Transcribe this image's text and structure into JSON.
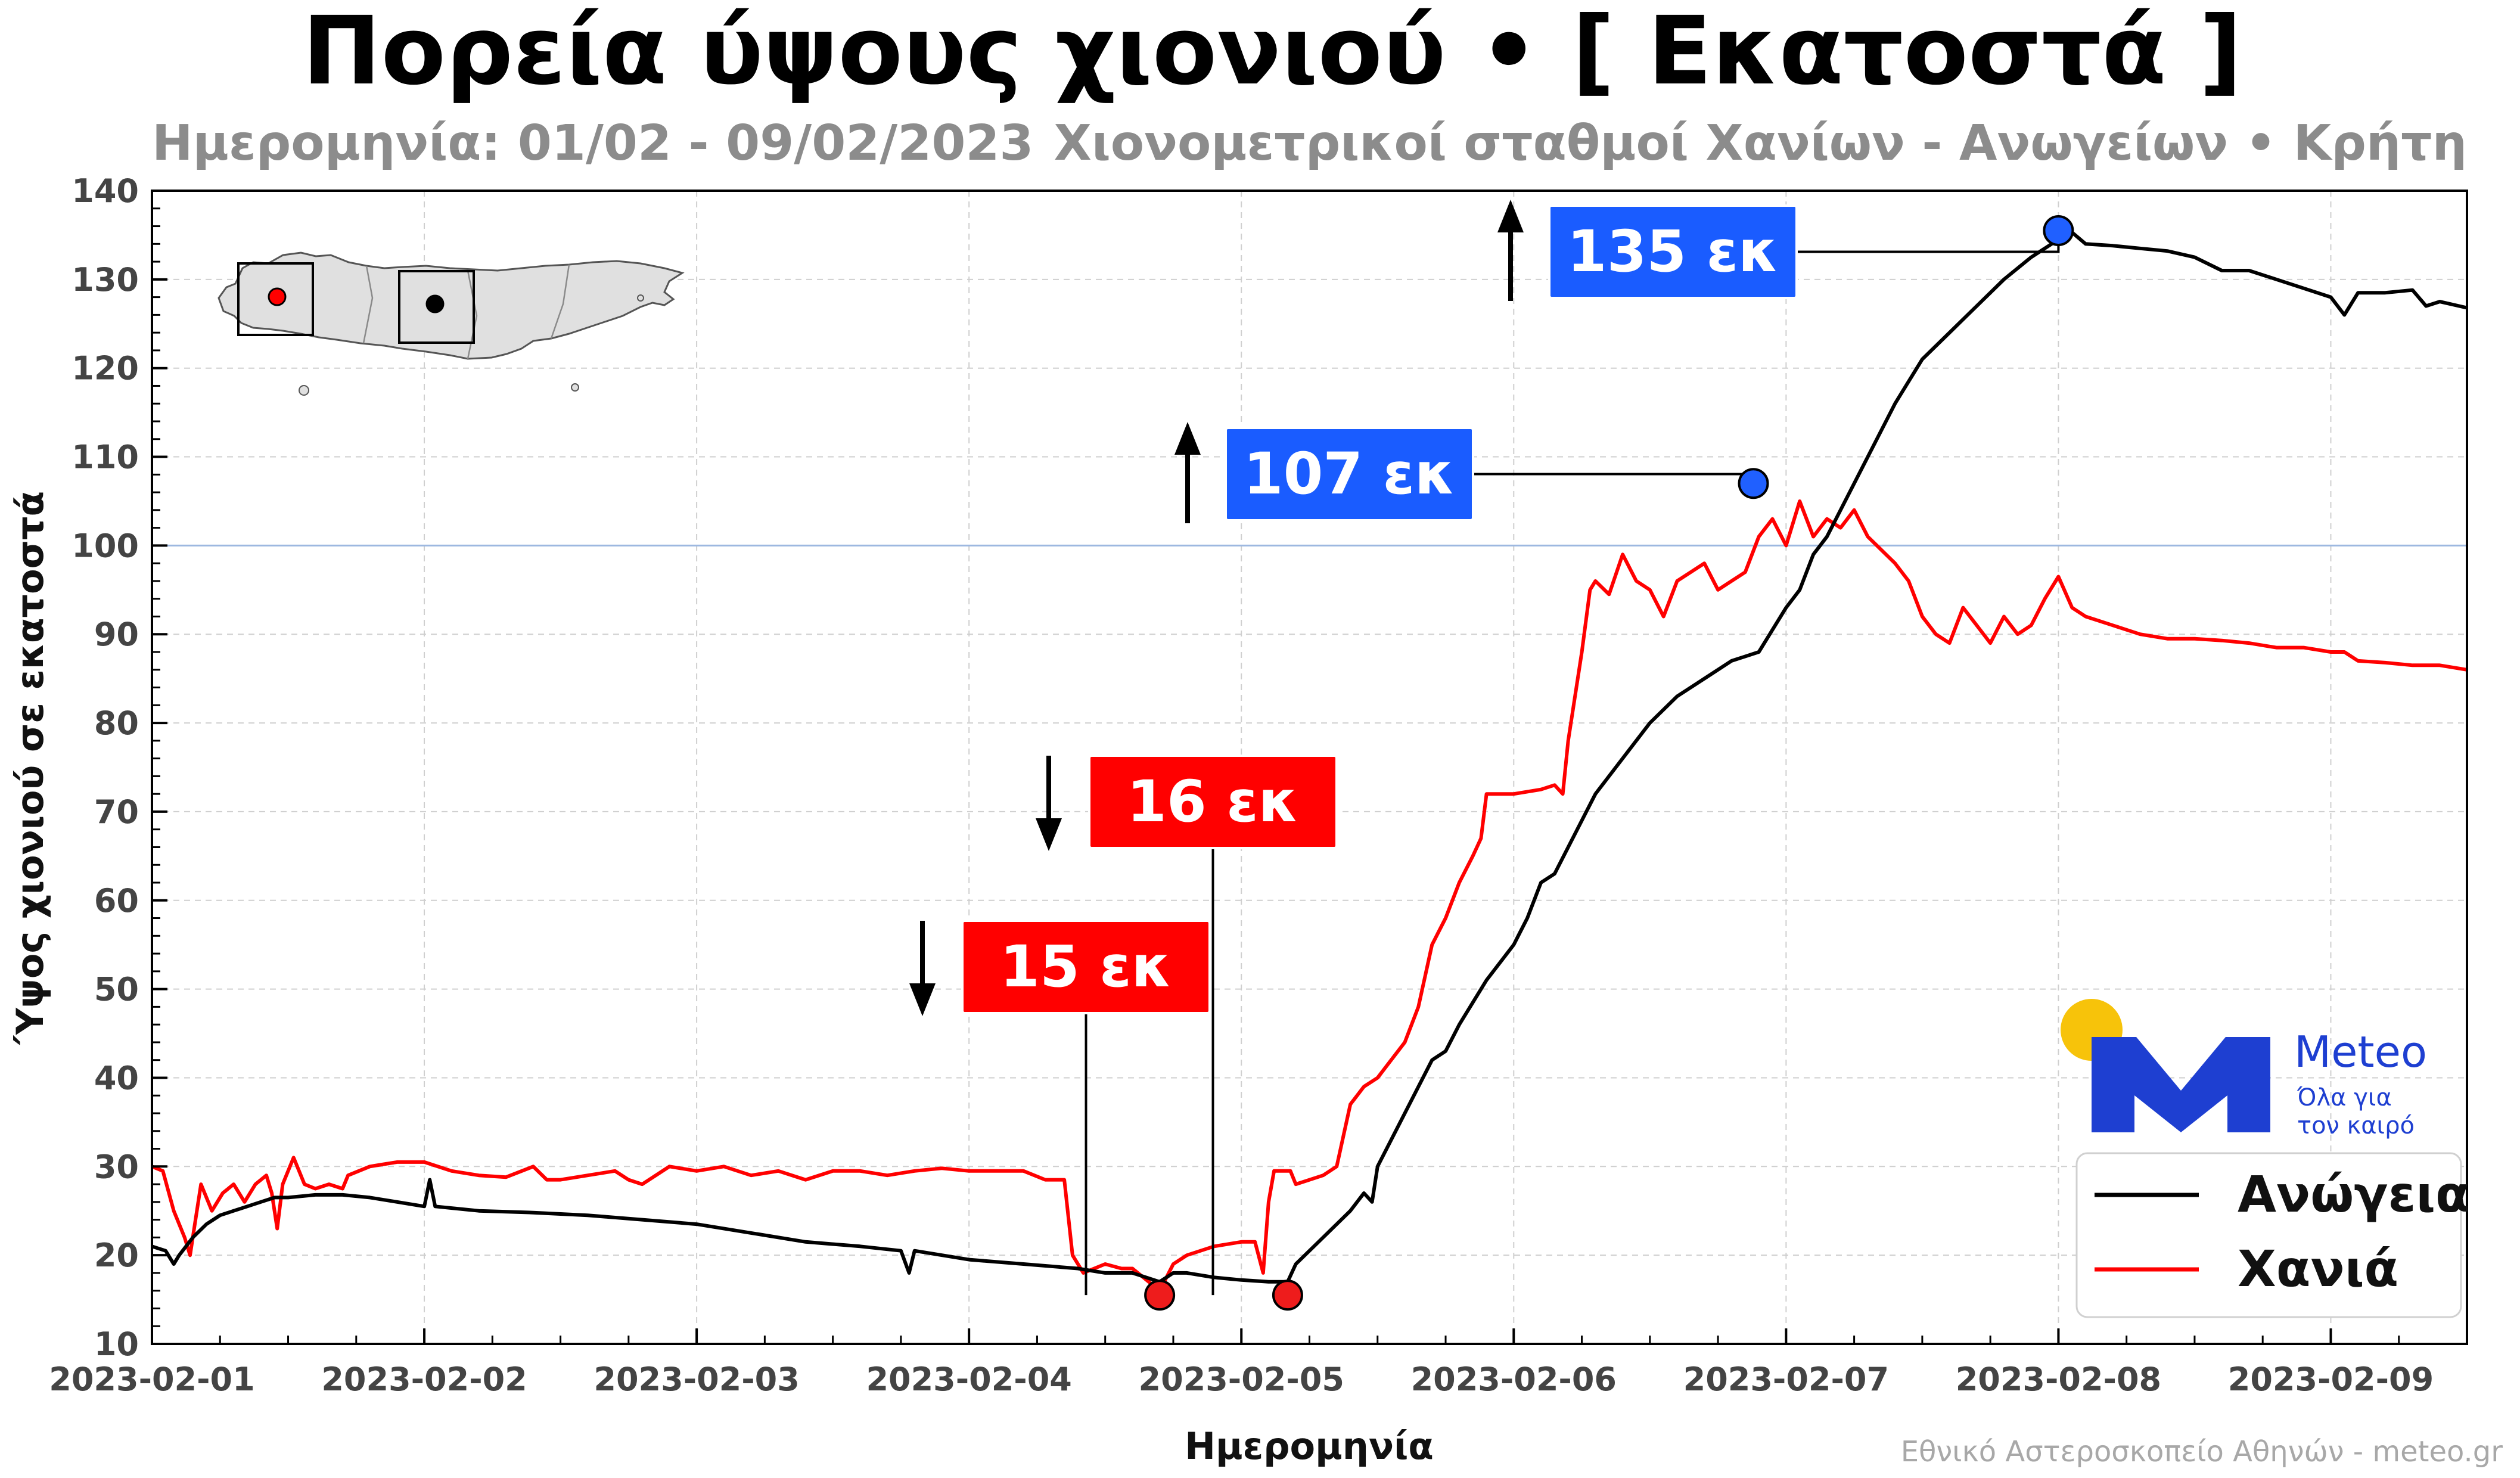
{
  "chart_data": {
    "type": "line",
    "title": "Πορεία ύψους χιονιού • [ Εκατοστά ]",
    "subtitle_left": "Ημερομηνία: 01/02 - 09/02/2023",
    "subtitle_right": "Χιονομετρικοί σταθμοί Χανίων - Ανωγείων • Κρήτη",
    "xlabel": "Ημερομηνία",
    "ylabel": "Ύψος χιονιού σε εκατοστά",
    "credit": "Εθνικό Αστεροσκοπείο Αθηνών - meteo.gr",
    "xlim": [
      0,
      8.5
    ],
    "ylim": [
      10,
      140
    ],
    "grid": true,
    "legend_position": "bottom-right",
    "x_ticks": [
      {
        "x": 0,
        "label": "2023-02-01"
      },
      {
        "x": 1,
        "label": "2023-02-02"
      },
      {
        "x": 2,
        "label": "2023-02-03"
      },
      {
        "x": 3,
        "label": "2023-02-04"
      },
      {
        "x": 4,
        "label": "2023-02-05"
      },
      {
        "x": 5,
        "label": "2023-02-06"
      },
      {
        "x": 6,
        "label": "2023-02-07"
      },
      {
        "x": 7,
        "label": "2023-02-08"
      },
      {
        "x": 8,
        "label": "2023-02-09"
      }
    ],
    "y_ticks": [
      {
        "y": 10,
        "label": "10"
      },
      {
        "y": 20,
        "label": "20"
      },
      {
        "y": 30,
        "label": "30"
      },
      {
        "y": 40,
        "label": "40"
      },
      {
        "y": 50,
        "label": "50"
      },
      {
        "y": 60,
        "label": "60"
      },
      {
        "y": 70,
        "label": "70"
      },
      {
        "y": 80,
        "label": "80"
      },
      {
        "y": 90,
        "label": "90"
      },
      {
        "y": 100,
        "label": "100",
        "highlight": true
      },
      {
        "y": 110,
        "label": "110"
      },
      {
        "y": 120,
        "label": "120"
      },
      {
        "y": 130,
        "label": "130"
      },
      {
        "y": 140,
        "label": "140"
      }
    ],
    "reference_line": {
      "y": 100,
      "color": "#9db8e0"
    },
    "series": [
      {
        "name": "Ανώγεια",
        "color": "#000000",
        "points": [
          [
            0,
            21
          ],
          [
            0.05,
            20.5
          ],
          [
            0.08,
            19
          ],
          [
            0.1,
            20
          ],
          [
            0.15,
            22
          ],
          [
            0.2,
            23.5
          ],
          [
            0.25,
            24.5
          ],
          [
            0.3,
            25
          ],
          [
            0.35,
            25.5
          ],
          [
            0.4,
            26
          ],
          [
            0.45,
            26.5
          ],
          [
            0.5,
            26.5
          ],
          [
            0.6,
            26.8
          ],
          [
            0.7,
            26.8
          ],
          [
            0.8,
            26.5
          ],
          [
            0.9,
            26
          ],
          [
            1.0,
            25.5
          ],
          [
            1.02,
            28.5
          ],
          [
            1.04,
            25.5
          ],
          [
            1.2,
            25
          ],
          [
            1.4,
            24.8
          ],
          [
            1.6,
            24.5
          ],
          [
            1.8,
            24
          ],
          [
            2.0,
            23.5
          ],
          [
            2.2,
            22.5
          ],
          [
            2.4,
            21.5
          ],
          [
            2.6,
            21
          ],
          [
            2.75,
            20.5
          ],
          [
            2.78,
            18
          ],
          [
            2.8,
            20.5
          ],
          [
            3.0,
            19.5
          ],
          [
            3.2,
            19
          ],
          [
            3.4,
            18.5
          ],
          [
            3.5,
            18
          ],
          [
            3.6,
            18
          ],
          [
            3.7,
            17
          ],
          [
            3.75,
            18
          ],
          [
            3.8,
            18
          ],
          [
            3.9,
            17.5
          ],
          [
            4.0,
            17.2
          ],
          [
            4.1,
            17
          ],
          [
            4.17,
            17
          ],
          [
            4.2,
            19
          ],
          [
            4.3,
            22
          ],
          [
            4.4,
            25
          ],
          [
            4.45,
            27
          ],
          [
            4.48,
            26
          ],
          [
            4.5,
            30
          ],
          [
            4.6,
            36
          ],
          [
            4.7,
            42
          ],
          [
            4.75,
            43
          ],
          [
            4.8,
            46
          ],
          [
            4.9,
            51
          ],
          [
            5.0,
            55
          ],
          [
            5.05,
            58
          ],
          [
            5.1,
            62
          ],
          [
            5.15,
            63
          ],
          [
            5.2,
            66
          ],
          [
            5.3,
            72
          ],
          [
            5.4,
            76
          ],
          [
            5.5,
            80
          ],
          [
            5.6,
            83
          ],
          [
            5.7,
            85
          ],
          [
            5.8,
            87
          ],
          [
            5.9,
            88
          ],
          [
            6.0,
            93
          ],
          [
            6.05,
            95
          ],
          [
            6.1,
            99
          ],
          [
            6.15,
            101
          ],
          [
            6.2,
            104
          ],
          [
            6.3,
            110
          ],
          [
            6.4,
            116
          ],
          [
            6.5,
            121
          ],
          [
            6.6,
            124
          ],
          [
            6.7,
            127
          ],
          [
            6.8,
            130
          ],
          [
            6.9,
            132.5
          ],
          [
            7.0,
            134.5
          ],
          [
            7.05,
            135.3
          ],
          [
            7.1,
            134
          ],
          [
            7.2,
            133.8
          ],
          [
            7.3,
            133.5
          ],
          [
            7.4,
            133.2
          ],
          [
            7.5,
            132.5
          ],
          [
            7.6,
            131
          ],
          [
            7.7,
            131
          ],
          [
            7.8,
            130
          ],
          [
            7.9,
            129
          ],
          [
            8.0,
            128
          ],
          [
            8.05,
            126
          ],
          [
            8.1,
            128.5
          ],
          [
            8.2,
            128.5
          ],
          [
            8.3,
            128.8
          ],
          [
            8.35,
            127
          ],
          [
            8.4,
            127.5
          ],
          [
            8.5,
            126.8
          ]
        ]
      },
      {
        "name": "Χανιά",
        "color": "#ff0000",
        "points": [
          [
            0,
            30
          ],
          [
            0.04,
            29.5
          ],
          [
            0.08,
            25
          ],
          [
            0.12,
            22
          ],
          [
            0.14,
            20
          ],
          [
            0.16,
            24
          ],
          [
            0.18,
            28
          ],
          [
            0.22,
            25
          ],
          [
            0.26,
            27
          ],
          [
            0.3,
            28
          ],
          [
            0.34,
            26
          ],
          [
            0.38,
            28
          ],
          [
            0.42,
            29
          ],
          [
            0.44,
            27
          ],
          [
            0.46,
            23
          ],
          [
            0.48,
            28
          ],
          [
            0.52,
            31
          ],
          [
            0.56,
            28
          ],
          [
            0.6,
            27.5
          ],
          [
            0.65,
            28
          ],
          [
            0.7,
            27.5
          ],
          [
            0.72,
            29
          ],
          [
            0.8,
            30
          ],
          [
            0.9,
            30.5
          ],
          [
            1.0,
            30.5
          ],
          [
            1.1,
            29.5
          ],
          [
            1.2,
            29
          ],
          [
            1.3,
            28.8
          ],
          [
            1.4,
            30
          ],
          [
            1.45,
            28.5
          ],
          [
            1.5,
            28.5
          ],
          [
            1.6,
            29
          ],
          [
            1.7,
            29.5
          ],
          [
            1.75,
            28.5
          ],
          [
            1.8,
            28
          ],
          [
            1.9,
            30
          ],
          [
            2.0,
            29.5
          ],
          [
            2.1,
            30
          ],
          [
            2.2,
            29
          ],
          [
            2.3,
            29.5
          ],
          [
            2.4,
            28.5
          ],
          [
            2.5,
            29.5
          ],
          [
            2.6,
            29.5
          ],
          [
            2.7,
            29
          ],
          [
            2.8,
            29.5
          ],
          [
            2.9,
            29.8
          ],
          [
            3.0,
            29.5
          ],
          [
            3.1,
            29.5
          ],
          [
            3.2,
            29.5
          ],
          [
            3.28,
            28.5
          ],
          [
            3.35,
            28.5
          ],
          [
            3.38,
            20
          ],
          [
            3.42,
            18
          ],
          [
            3.5,
            19
          ],
          [
            3.56,
            18.5
          ],
          [
            3.6,
            18.5
          ],
          [
            3.7,
            16
          ],
          [
            3.75,
            19
          ],
          [
            3.8,
            20
          ],
          [
            3.9,
            21
          ],
          [
            4.0,
            21.5
          ],
          [
            4.05,
            21.5
          ],
          [
            4.08,
            18
          ],
          [
            4.1,
            26
          ],
          [
            4.12,
            29.5
          ],
          [
            4.18,
            29.5
          ],
          [
            4.2,
            28
          ],
          [
            4.3,
            29
          ],
          [
            4.35,
            30
          ],
          [
            4.4,
            37
          ],
          [
            4.45,
            39
          ],
          [
            4.5,
            40
          ],
          [
            4.55,
            42
          ],
          [
            4.6,
            44
          ],
          [
            4.65,
            48
          ],
          [
            4.7,
            55
          ],
          [
            4.75,
            58
          ],
          [
            4.8,
            62
          ],
          [
            4.85,
            65
          ],
          [
            4.88,
            67
          ],
          [
            4.9,
            72
          ],
          [
            5.0,
            72
          ],
          [
            5.1,
            72.5
          ],
          [
            5.15,
            73
          ],
          [
            5.18,
            72
          ],
          [
            5.2,
            78
          ],
          [
            5.25,
            88
          ],
          [
            5.28,
            95
          ],
          [
            5.3,
            96
          ],
          [
            5.35,
            94.5
          ],
          [
            5.4,
            99
          ],
          [
            5.45,
            96
          ],
          [
            5.5,
            95
          ],
          [
            5.55,
            92
          ],
          [
            5.6,
            96
          ],
          [
            5.65,
            97
          ],
          [
            5.7,
            98
          ],
          [
            5.75,
            95
          ],
          [
            5.8,
            96
          ],
          [
            5.85,
            97
          ],
          [
            5.9,
            101
          ],
          [
            5.95,
            103
          ],
          [
            6.0,
            100
          ],
          [
            6.05,
            105
          ],
          [
            6.1,
            101
          ],
          [
            6.15,
            103
          ],
          [
            6.2,
            102
          ],
          [
            6.25,
            104
          ],
          [
            6.3,
            101
          ],
          [
            6.35,
            99.5
          ],
          [
            6.4,
            98
          ],
          [
            6.45,
            96
          ],
          [
            6.5,
            92
          ],
          [
            6.55,
            90
          ],
          [
            6.6,
            89
          ],
          [
            6.65,
            93
          ],
          [
            6.7,
            91
          ],
          [
            6.75,
            89
          ],
          [
            6.8,
            92
          ],
          [
            6.85,
            90
          ],
          [
            6.9,
            91
          ],
          [
            6.95,
            94
          ],
          [
            7.0,
            96.5
          ],
          [
            7.05,
            93
          ],
          [
            7.1,
            92
          ],
          [
            7.2,
            91
          ],
          [
            7.3,
            90
          ],
          [
            7.4,
            89.5
          ],
          [
            7.5,
            89.5
          ],
          [
            7.6,
            89.3
          ],
          [
            7.7,
            89
          ],
          [
            7.8,
            88.5
          ],
          [
            7.9,
            88.5
          ],
          [
            8.0,
            88
          ],
          [
            8.05,
            88
          ],
          [
            8.1,
            87
          ],
          [
            8.2,
            86.8
          ],
          [
            8.3,
            86.5
          ],
          [
            8.4,
            86.5
          ],
          [
            8.5,
            86
          ]
        ]
      }
    ],
    "annotations": [
      {
        "label": "15 εκ",
        "x": 3.7,
        "y": 15.5,
        "color": "#ff0000",
        "marker_color": "#ee1c1c",
        "direction": "down"
      },
      {
        "label": "16 εκ",
        "x": 4.17,
        "y": 15.5,
        "color": "#ff0000",
        "marker_color": "#ee1c1c",
        "direction": "down"
      },
      {
        "label": "107 εκ",
        "x": 5.88,
        "y": 107,
        "color": "#1a5cff",
        "marker_color": "#2060ff",
        "direction": "up"
      },
      {
        "label": "135 εκ",
        "x": 7.0,
        "y": 135.5,
        "color": "#1a5cff",
        "marker_color": "#2060ff",
        "direction": "up"
      }
    ]
  },
  "logo": {
    "brand": "Meteo",
    "tagline_1": "Όλα για",
    "tagline_2": "τον καιρό",
    "sun_color": "#f7c30a",
    "mark_color": "#1e3fd1"
  },
  "inset_map": {
    "station_colors": [
      "#ff0000",
      "#000000"
    ],
    "land_color": "#e0e0e0"
  }
}
